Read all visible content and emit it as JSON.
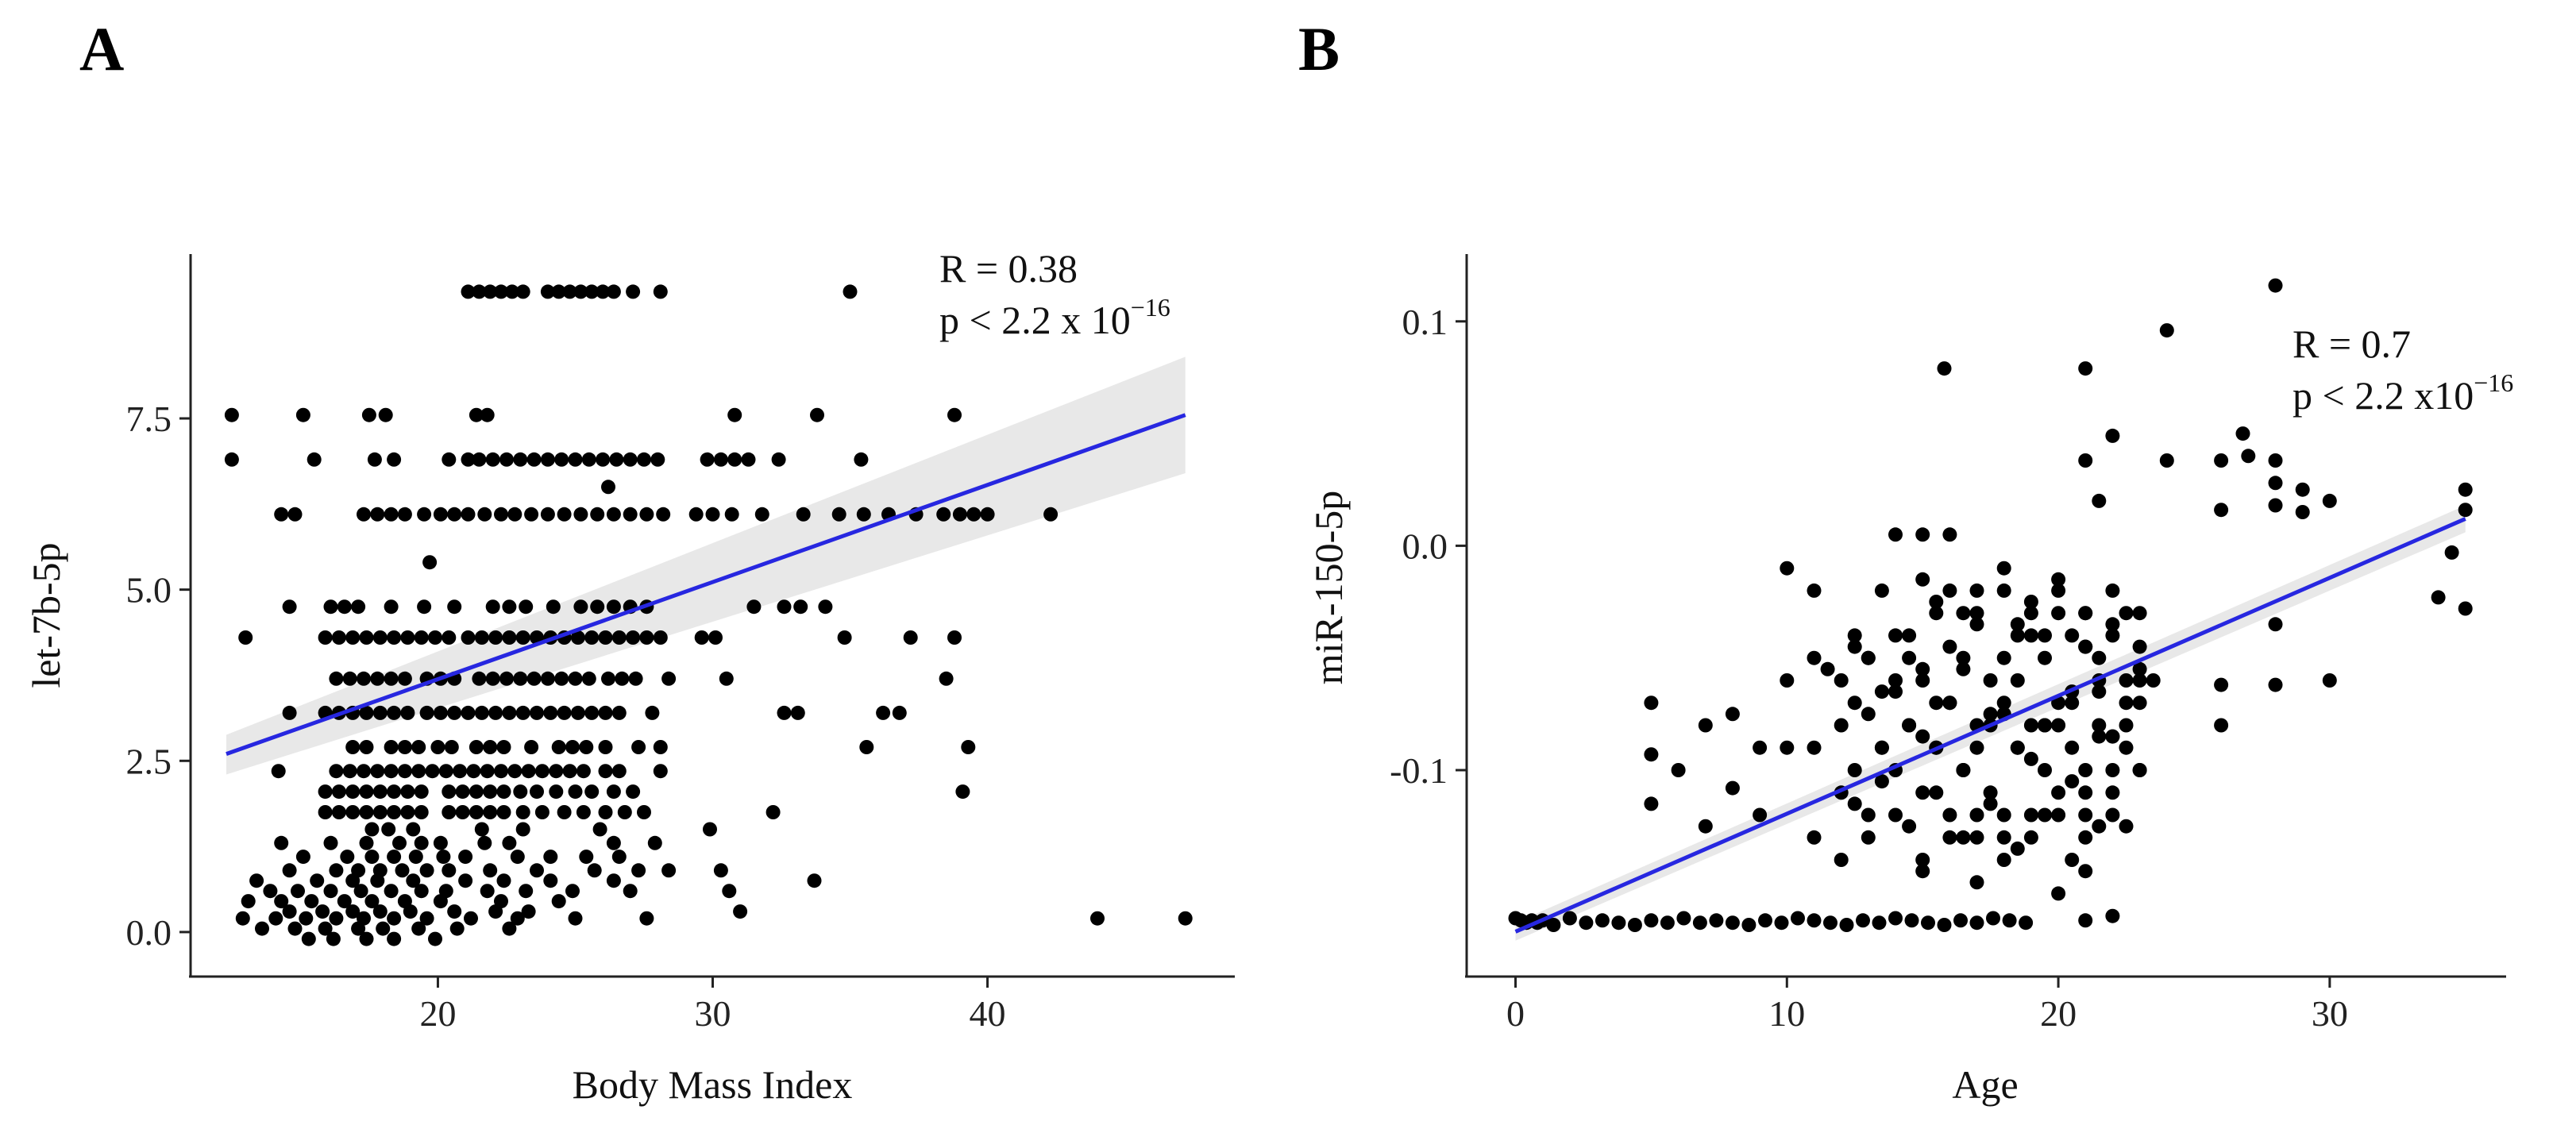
{
  "chart_data": [
    {
      "panel_label": "A",
      "type": "scatter",
      "xlabel": "Body Mass Index",
      "ylabel": "let-7b-5p",
      "xlim": [
        11,
        49
      ],
      "ylim": [
        -0.65,
        9.9
      ],
      "xticks": [
        20,
        30,
        40
      ],
      "yticks": [
        0.0,
        2.5,
        5.0,
        7.5
      ],
      "ytick_labels": [
        "0.0",
        "2.5",
        "5.0",
        "7.5"
      ],
      "annotation": {
        "r_text": "R = 0.38",
        "p_text": "p < 2.2 x 10",
        "p_exp": "−16"
      },
      "fit": {
        "x": [
          12.3,
          47.2
        ],
        "y": [
          2.6,
          7.55
        ]
      },
      "ci_band": {
        "x": [
          12.3,
          47.2
        ],
        "upper": [
          2.88,
          8.4
        ],
        "lower": [
          2.3,
          6.7
        ]
      },
      "rows": [
        {
          "y": 9.35,
          "x": [
            21.1,
            21.5,
            21.9,
            22.3,
            22.7,
            23.1,
            24.0,
            24.4,
            24.8,
            25.2,
            25.6,
            26.0,
            26.4,
            27.1,
            28.1,
            35.0
          ]
        },
        {
          "y": 7.55,
          "x": [
            12.5,
            15.1,
            17.5,
            18.1,
            21.4,
            21.8,
            30.8,
            33.8,
            38.8
          ]
        },
        {
          "y": 6.9,
          "x": [
            12.5,
            15.5,
            17.7,
            18.4,
            20.4,
            21.1,
            21.5,
            22.0,
            22.5,
            23.0,
            23.5,
            24.0,
            24.5,
            25.0,
            25.5,
            26.0,
            26.5,
            27.0,
            27.5,
            28.0,
            29.8,
            30.3,
            30.8,
            31.3,
            32.4,
            35.4
          ]
        },
        {
          "y": 6.5,
          "x": [
            26.2
          ]
        },
        {
          "y": 6.1,
          "x": [
            14.3,
            14.8,
            17.3,
            17.8,
            18.3,
            18.8,
            19.5,
            20.1,
            20.6,
            21.1,
            21.7,
            22.3,
            22.8,
            23.4,
            24.0,
            24.6,
            25.2,
            25.8,
            26.4,
            27.0,
            27.6,
            28.2,
            29.4,
            30.0,
            30.7,
            31.8,
            33.3,
            34.6,
            35.5,
            36.4,
            37.4,
            38.4,
            39.0,
            39.5,
            40.0,
            42.3
          ]
        },
        {
          "y": 5.4,
          "x": [
            19.7
          ]
        },
        {
          "y": 4.75,
          "x": [
            14.6,
            16.1,
            16.6,
            17.1,
            18.3,
            19.5,
            20.6,
            22.0,
            22.6,
            23.2,
            24.2,
            25.2,
            25.8,
            26.4,
            27.0,
            27.6,
            31.5,
            32.6,
            33.2,
            34.1
          ]
        },
        {
          "y": 4.3,
          "x": [
            13.0,
            15.9,
            16.4,
            16.9,
            17.4,
            17.9,
            18.4,
            18.9,
            19.4,
            19.9,
            20.4,
            21.1,
            21.6,
            22.1,
            22.6,
            23.1,
            23.6,
            24.1,
            24.6,
            25.1,
            25.6,
            26.1,
            26.6,
            27.1,
            27.6,
            28.1,
            29.6,
            30.1,
            34.8,
            37.2,
            38.8
          ]
        },
        {
          "y": 3.7,
          "x": [
            16.3,
            16.8,
            17.3,
            17.8,
            18.3,
            18.8,
            19.6,
            20.1,
            20.6,
            21.5,
            22.0,
            22.5,
            23.0,
            23.5,
            24.0,
            24.5,
            25.0,
            25.5,
            26.2,
            26.7,
            27.2,
            28.4,
            30.5,
            38.5
          ]
        },
        {
          "y": 3.2,
          "x": [
            14.6,
            15.9,
            16.4,
            16.9,
            17.4,
            17.9,
            18.4,
            18.9,
            19.6,
            20.1,
            20.6,
            21.1,
            21.6,
            22.1,
            22.6,
            23.1,
            23.6,
            24.1,
            24.6,
            25.1,
            25.6,
            26.1,
            26.6,
            27.8,
            32.6,
            33.1,
            36.2,
            36.8
          ]
        },
        {
          "y": 2.7,
          "x": [
            16.9,
            17.4,
            18.3,
            18.8,
            19.3,
            20.0,
            20.5,
            21.4,
            21.9,
            22.4,
            23.4,
            24.4,
            24.9,
            25.4,
            26.1,
            27.3,
            28.1,
            35.6,
            39.3
          ]
        },
        {
          "y": 2.35,
          "x": [
            14.2,
            16.3,
            16.8,
            17.3,
            17.8,
            18.3,
            18.8,
            19.3,
            19.8,
            20.3,
            20.8,
            21.3,
            21.8,
            22.3,
            22.8,
            23.3,
            23.8,
            24.3,
            24.8,
            25.3,
            26.1,
            26.6,
            28.1
          ]
        },
        {
          "y": 2.05,
          "x": [
            15.9,
            16.4,
            16.9,
            17.4,
            17.9,
            18.4,
            18.9,
            19.4,
            20.4,
            20.9,
            21.4,
            21.9,
            22.4,
            23.0,
            23.6,
            24.3,
            25.0,
            25.6,
            26.4,
            27.1,
            39.1
          ]
        },
        {
          "y": 1.75,
          "x": [
            15.9,
            16.4,
            16.9,
            17.4,
            17.9,
            18.4,
            18.9,
            19.4,
            20.4,
            20.9,
            21.4,
            21.9,
            22.4,
            23.1,
            23.8,
            24.6,
            25.3,
            26.1,
            26.8,
            27.5,
            32.2
          ]
        },
        {
          "y": 1.5,
          "x": [
            17.6,
            18.2,
            19.1,
            21.6,
            23.1,
            25.9,
            29.9
          ]
        },
        {
          "y": 1.3,
          "x": [
            14.3,
            16.1,
            17.4,
            18.6,
            19.4,
            20.1,
            21.7,
            22.6,
            26.4,
            27.9
          ]
        },
        {
          "y": 1.1,
          "x": [
            15.1,
            16.7,
            17.6,
            18.4,
            19.2,
            20.2,
            21.0,
            22.9,
            24.1,
            25.4,
            26.6
          ]
        },
        {
          "y": 0.9,
          "x": [
            14.6,
            16.3,
            17.1,
            17.9,
            18.7,
            19.6,
            20.4,
            21.9,
            23.6,
            25.7,
            27.3,
            28.4,
            30.3
          ]
        },
        {
          "y": 0.75,
          "x": [
            13.4,
            15.6,
            16.9,
            17.8,
            19.1,
            21.0,
            22.4,
            24.1,
            26.4,
            33.7
          ]
        },
        {
          "y": 0.6,
          "x": [
            13.9,
            14.9,
            16.1,
            17.2,
            18.3,
            19.4,
            20.3,
            21.8,
            23.2,
            24.9,
            27.0,
            30.6
          ]
        },
        {
          "y": 0.45,
          "x": [
            13.1,
            14.3,
            15.4,
            16.6,
            17.6,
            18.8,
            20.1,
            22.3,
            24.4
          ]
        },
        {
          "y": 0.3,
          "x": [
            14.6,
            15.8,
            16.9,
            17.9,
            19.0,
            20.6,
            22.1,
            23.3,
            31.0
          ]
        },
        {
          "y": 0.2,
          "x": [
            12.9,
            14.1,
            15.2,
            16.3,
            17.3,
            18.4,
            19.6,
            21.2,
            22.9,
            25.0,
            27.6,
            44.0,
            47.2
          ]
        },
        {
          "y": 0.05,
          "x": [
            13.6,
            14.8,
            15.9,
            17.1,
            18.0,
            19.3,
            20.7,
            22.6
          ]
        },
        {
          "y": -0.1,
          "x": [
            15.3,
            16.2,
            17.4,
            18.4,
            19.9
          ]
        }
      ]
    },
    {
      "panel_label": "B",
      "type": "scatter",
      "xlabel": "Age",
      "ylabel": "miR-150-5p",
      "xlim": [
        -1.8,
        36.5
      ],
      "ylim": [
        -0.192,
        0.13
      ],
      "xticks": [
        0,
        10,
        20,
        30
      ],
      "yticks": [
        0.1,
        0.0,
        -0.1
      ],
      "ytick_labels": [
        "0.1",
        "0.0",
        "-0.1"
      ],
      "annotation": {
        "r_text": "R = 0.7",
        "p_text": "p < 2.2 x10",
        "p_exp": "−16"
      },
      "fit": {
        "x": [
          0.0,
          35.0
        ],
        "y": [
          -0.172,
          0.012
        ]
      },
      "ci_band": {
        "x": [
          0.0,
          35.0
        ],
        "upper": [
          -0.168,
          0.018
        ],
        "lower": [
          -0.176,
          0.006
        ]
      },
      "points": {
        "x": [
          28.0,
          24.0,
          15.8,
          21.0,
          35.0,
          35.0,
          34.0,
          34.5,
          35.0,
          26.8,
          27.0,
          28.0,
          28.0,
          28.0,
          29.0,
          29.0,
          30.0,
          30.0,
          26.0,
          26.0,
          28.0,
          28.0,
          26.0,
          26.0,
          0.0,
          0.2,
          0.4,
          0.6,
          0.8,
          1.0,
          1.4,
          2.0,
          2.6,
          3.2,
          3.8,
          4.4,
          5.0,
          5.6,
          6.2,
          6.8,
          7.4,
          8.0,
          8.6,
          9.2,
          9.8,
          10.4,
          11.0,
          11.6,
          12.2,
          12.8,
          13.4,
          14.0,
          14.6,
          15.2,
          15.8,
          16.4,
          17.0,
          17.6,
          18.2,
          18.8,
          21.0,
          5.0,
          5.0,
          5.0,
          6.0,
          7.0,
          7.0,
          8.0,
          8.0,
          9.0,
          9.0,
          10.0,
          10.0,
          10.0,
          11.0,
          11.0,
          11.0,
          11.0,
          12.0,
          12.5,
          12.0,
          12.5,
          13.0,
          13.0,
          13.5,
          13.5,
          14.0,
          14.0,
          14.5,
          14.5,
          15.0,
          15.0,
          15.0,
          15.5,
          15.5,
          16.0,
          16.0,
          16.0,
          16.5,
          16.5,
          17.0,
          17.0,
          17.0,
          17.5,
          17.5,
          18.0,
          18.0,
          18.0,
          18.5,
          18.5,
          19.0,
          19.0,
          19.0,
          19.5,
          19.5,
          20.0,
          20.0,
          20.0,
          20.5,
          20.5,
          21.0,
          21.0,
          21.0,
          21.5,
          21.5,
          22.0,
          22.0,
          22.0,
          22.5,
          22.5,
          23.0,
          23.0,
          23.0,
          23.5,
          12.0,
          12.5,
          13.0,
          13.5,
          14.0,
          14.5,
          15.0,
          15.5,
          16.0,
          16.5,
          17.0,
          17.5,
          18.0,
          18.5,
          19.0,
          19.5,
          20.0,
          20.5,
          21.0,
          21.5,
          22.0,
          22.5,
          23.0,
          12.0,
          13.0,
          14.0,
          15.0,
          16.0,
          17.0,
          18.0,
          19.0,
          20.0,
          21.0,
          22.0,
          23.0,
          24.0,
          14.0,
          15.0,
          16.0,
          17.0,
          18.0,
          19.0,
          20.0,
          21.0,
          22.0,
          23.0,
          13.0,
          14.0,
          15.0,
          16.0,
          17.0,
          18.0,
          19.0,
          20.0,
          21.0,
          22.0,
          12.5,
          13.5,
          14.5,
          15.5,
          16.5,
          17.5,
          18.5,
          19.5,
          20.5,
          21.5,
          11.5,
          12.5,
          13.5,
          14.5,
          15.5,
          16.5,
          17.5,
          18.5,
          19.5,
          20.5,
          21.5,
          22.5,
          15.0,
          17.0,
          18.0,
          20.0,
          21.0,
          22.0,
          15.5,
          16.5,
          18.5,
          19.5,
          21.5,
          22.5,
          21.0,
          21.5,
          22.0,
          20.5,
          22.5,
          21.0,
          22.0,
          23.0
        ],
        "y": [
          0.116,
          0.096,
          0.079,
          0.079,
          0.025,
          0.016,
          -0.023,
          -0.003,
          -0.028,
          0.05,
          0.04,
          0.038,
          0.028,
          0.018,
          0.025,
          0.015,
          0.02,
          -0.06,
          0.038,
          0.016,
          -0.035,
          -0.062,
          -0.062,
          -0.08,
          -0.166,
          -0.167,
          -0.168,
          -0.167,
          -0.168,
          -0.167,
          -0.169,
          -0.166,
          -0.168,
          -0.167,
          -0.168,
          -0.169,
          -0.167,
          -0.168,
          -0.166,
          -0.168,
          -0.167,
          -0.168,
          -0.169,
          -0.167,
          -0.168,
          -0.166,
          -0.167,
          -0.168,
          -0.169,
          -0.167,
          -0.168,
          -0.166,
          -0.167,
          -0.168,
          -0.169,
          -0.167,
          -0.168,
          -0.166,
          -0.167,
          -0.168,
          -0.167,
          -0.07,
          -0.093,
          -0.115,
          -0.1,
          -0.08,
          -0.125,
          -0.075,
          -0.108,
          -0.09,
          -0.12,
          -0.01,
          -0.06,
          -0.09,
          -0.02,
          -0.05,
          -0.09,
          -0.13,
          -0.08,
          -0.04,
          -0.11,
          -0.07,
          -0.05,
          -0.12,
          -0.02,
          -0.09,
          -0.06,
          -0.1,
          -0.04,
          -0.08,
          0.005,
          -0.06,
          -0.11,
          -0.03,
          -0.09,
          -0.02,
          -0.07,
          -0.12,
          -0.05,
          -0.1,
          -0.03,
          -0.08,
          -0.13,
          -0.06,
          -0.11,
          -0.02,
          -0.07,
          -0.12,
          -0.04,
          -0.09,
          -0.03,
          -0.08,
          -0.13,
          -0.05,
          -0.1,
          -0.02,
          -0.07,
          -0.12,
          -0.04,
          -0.09,
          0.038,
          -0.03,
          -0.11,
          0.02,
          -0.06,
          0.049,
          -0.04,
          -0.1,
          -0.03,
          -0.08,
          -0.03,
          -0.07,
          -0.1,
          -0.06,
          -0.14,
          -0.1,
          -0.13,
          -0.09,
          -0.12,
          -0.08,
          -0.14,
          -0.09,
          -0.13,
          -0.1,
          -0.12,
          -0.08,
          -0.13,
          -0.09,
          -0.12,
          -0.08,
          -0.11,
          -0.07,
          -0.12,
          -0.08,
          -0.11,
          -0.09,
          -0.1,
          -0.06,
          -0.05,
          -0.04,
          -0.055,
          -0.045,
          -0.035,
          -0.05,
          -0.04,
          -0.03,
          -0.045,
          -0.035,
          -0.06,
          0.038,
          0.005,
          -0.015,
          0.005,
          -0.02,
          -0.01,
          -0.025,
          -0.015,
          -0.03,
          -0.02,
          -0.045,
          -0.075,
          -0.065,
          -0.085,
          -0.07,
          -0.09,
          -0.075,
          -0.095,
          -0.08,
          -0.1,
          -0.085,
          -0.115,
          -0.105,
          -0.125,
          -0.11,
          -0.13,
          -0.115,
          -0.135,
          -0.12,
          -0.14,
          -0.125,
          -0.055,
          -0.045,
          -0.065,
          -0.05,
          -0.07,
          -0.055,
          -0.075,
          -0.06,
          -0.08,
          -0.065,
          -0.085,
          -0.07,
          -0.145,
          -0.15,
          -0.14,
          -0.155,
          -0.13,
          -0.12,
          -0.025,
          -0.03,
          -0.035,
          -0.04,
          -0.05,
          -0.06,
          -0.045,
          -0.065,
          -0.085,
          -0.105,
          -0.125,
          -0.145,
          -0.165,
          -0.055
        ]
      }
    }
  ]
}
